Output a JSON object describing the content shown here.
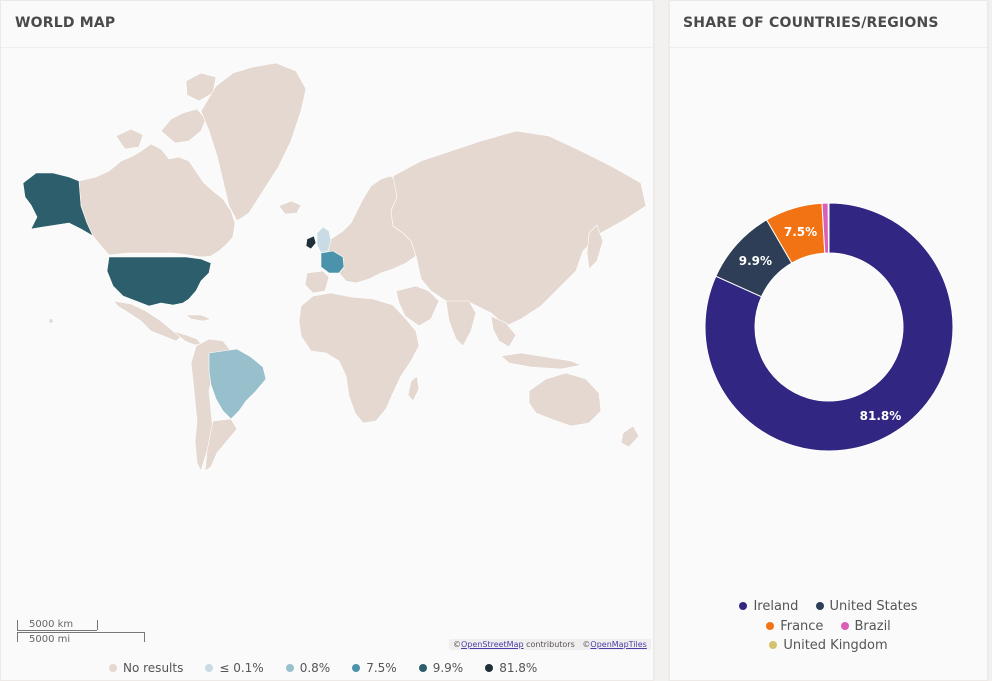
{
  "map_card": {
    "title": "WORLD MAP",
    "scale_km": "5000 km",
    "scale_mi": "5000 mi",
    "attribution": {
      "prefix": "©",
      "osm": "OpenStreetMap",
      "contributors": " contributors",
      "prefix2": "©",
      "tiles": "OpenMapTiles"
    },
    "legend": [
      {
        "label": "No results",
        "color": "#e4d8d0"
      },
      {
        "label": "≤ 0.1%",
        "color": "#c9dbe4"
      },
      {
        "label": "0.8%",
        "color": "#97bfcc"
      },
      {
        "label": "7.5%",
        "color": "#4a93ab"
      },
      {
        "label": "9.9%",
        "color": "#2d5e6c"
      },
      {
        "label": "81.8%",
        "color": "#1f3038"
      }
    ],
    "colors": {
      "no_results": "#e4d8d0",
      "us": "#2d5e6c",
      "alaska": "#2d5e6c",
      "france": "#4a93ab",
      "brazil": "#97bfcc",
      "ireland": "#1f3038",
      "uk": "#c9dbe4"
    }
  },
  "donut_card": {
    "title": "SHARE OF COUNTRIES/REGIONS",
    "chart_data": {
      "type": "pie",
      "title": "",
      "categories": [
        "Ireland",
        "United States",
        "France",
        "Brazil",
        "United Kingdom"
      ],
      "values": [
        81.8,
        9.9,
        7.5,
        0.8,
        0.1
      ],
      "colors": [
        "#312783",
        "#2d3e56",
        "#f27313",
        "#d95fb8",
        "#d4c26e"
      ],
      "data_labels": [
        "81.8%",
        "9.9%",
        "7.5%",
        "",
        ""
      ],
      "donut": true,
      "legend_position": "bottom"
    }
  }
}
